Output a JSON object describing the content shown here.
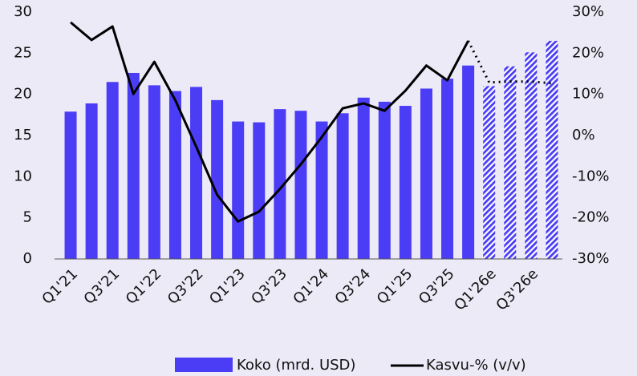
{
  "chart_data": {
    "type": "bar",
    "categories": [
      "Q1'21",
      null,
      "Q3'21",
      null,
      "Q1'22",
      null,
      "Q3'22",
      null,
      "Q1'23",
      null,
      "Q3'23",
      null,
      "Q1'24",
      null,
      "Q3'24",
      null,
      "Q1'25",
      null,
      "Q3'25",
      null,
      "Q1'26e",
      null,
      "Q3'26e",
      null
    ],
    "series": [
      {
        "name": "Koko (mrd. USD)",
        "color": "#4b3df5",
        "values": [
          17.9,
          18.9,
          21.5,
          22.6,
          21.1,
          20.4,
          20.9,
          19.3,
          16.7,
          16.6,
          18.2,
          18.0,
          16.7,
          17.7,
          19.6,
          19.1,
          18.6,
          20.7,
          21.9,
          23.5,
          21.0,
          23.4,
          25.1,
          26.5
        ]
      },
      {
        "name": "Kasvu-% (v/v)",
        "color": "#000000",
        "type": "line",
        "axis": "y2",
        "values": [
          27.5,
          23.2,
          26.5,
          10.1,
          17.9,
          8.6,
          -2.7,
          -14.4,
          -20.9,
          -18.5,
          -13.0,
          -7.0,
          -0.4,
          6.6,
          7.8,
          6.0,
          10.9,
          17.0,
          13.4,
          23.0,
          12.9,
          13.1,
          13.1,
          12.7
        ]
      }
    ],
    "estimate_from": 20,
    "ylim": [
      0,
      30
    ],
    "yticks": [
      0,
      5,
      10,
      15,
      20,
      25,
      30
    ],
    "y2lim": [
      -30,
      30
    ],
    "y2ticks": [
      {
        "value": -30,
        "label": "-30%"
      },
      {
        "value": -20,
        "label": "-20%"
      },
      {
        "value": -10,
        "label": "-10%"
      },
      {
        "value": 0,
        "label": "0%"
      },
      {
        "value": 10,
        "label": "10%"
      },
      {
        "value": 20,
        "label": "20%"
      },
      {
        "value": 30,
        "label": "30%"
      }
    ],
    "legend": "bottom"
  }
}
